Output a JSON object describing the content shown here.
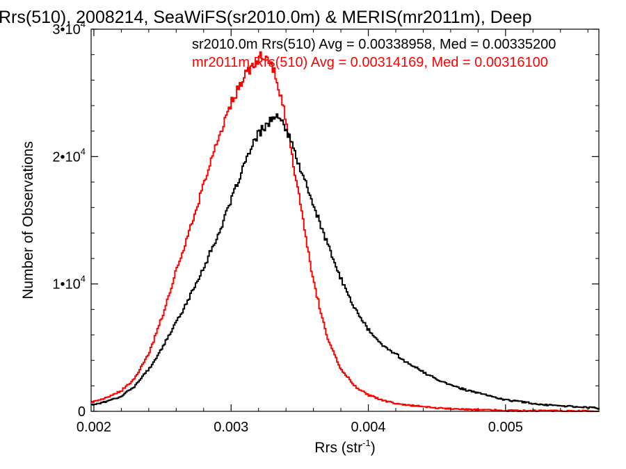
{
  "chart_data": {
    "type": "line",
    "title": "Rrs(510), 2008214, SeaWiFS(sr2010.0m) & MERIS(mr2011m), Deep",
    "xlabel": "Rrs (str",
    "xlabel_sup": "-1",
    "xlabel_close": ")",
    "ylabel": "Number of Observations",
    "xlim": [
      0.00198,
      0.00568
    ],
    "ylim": [
      0,
      30000
    ],
    "x_ticks": [
      {
        "value": 0.002,
        "label": "0.002"
      },
      {
        "value": 0.003,
        "label": "0.003"
      },
      {
        "value": 0.004,
        "label": "0.004"
      },
      {
        "value": 0.005,
        "label": "0.005"
      }
    ],
    "y_ticks": [
      {
        "value": 0,
        "label": "0"
      },
      {
        "value": 10000,
        "label": "1•10",
        "exp": "4"
      },
      {
        "value": 20000,
        "label": "2•10",
        "exp": "4"
      },
      {
        "value": 30000,
        "label": "3•10",
        "exp": "4"
      }
    ],
    "step_style": "histogram",
    "bin_width": 1e-05,
    "series": [
      {
        "name": "sr2010.0m",
        "color": "#000000",
        "legend": "sr2010.0m Rrs(510) Avg = 0.00338958, Med = 0.00335200",
        "x": [
          0.00198,
          0.0021,
          0.0022,
          0.0023,
          0.0024,
          0.0025,
          0.0026,
          0.0027,
          0.0028,
          0.0029,
          0.003,
          0.0031,
          0.0032,
          0.0033,
          0.00335,
          0.0034,
          0.0035,
          0.0036,
          0.0037,
          0.0038,
          0.0039,
          0.004,
          0.0041,
          0.0042,
          0.0043,
          0.0045,
          0.0047,
          0.005,
          0.0053,
          0.00568
        ],
        "y": [
          500,
          800,
          1200,
          2000,
          3300,
          5000,
          7000,
          9000,
          11300,
          13700,
          16500,
          19500,
          21800,
          23000,
          23000,
          22200,
          19200,
          16200,
          13200,
          10400,
          8100,
          6400,
          5200,
          4500,
          3700,
          2500,
          1700,
          900,
          500,
          250
        ]
      },
      {
        "name": "mr2011m",
        "color": "#ff0000",
        "legend": "mr2011m Rrs(510) Avg = 0.00314169, Med = 0.00316100",
        "x": [
          0.00198,
          0.0021,
          0.0022,
          0.0023,
          0.0024,
          0.0025,
          0.0026,
          0.0027,
          0.0028,
          0.0029,
          0.003,
          0.0031,
          0.0032,
          0.00325,
          0.0033,
          0.0034,
          0.0035,
          0.0036,
          0.0037,
          0.0038,
          0.0039,
          0.004,
          0.0041,
          0.0042,
          0.0045,
          0.005,
          0.00568
        ],
        "y": [
          700,
          1100,
          1600,
          2600,
          4500,
          7500,
          11000,
          14300,
          17800,
          21200,
          24200,
          26300,
          27700,
          28000,
          27200,
          23000,
          16500,
          10200,
          5800,
          3300,
          2000,
          1300,
          900,
          600,
          250,
          60,
          10
        ]
      }
    ]
  }
}
